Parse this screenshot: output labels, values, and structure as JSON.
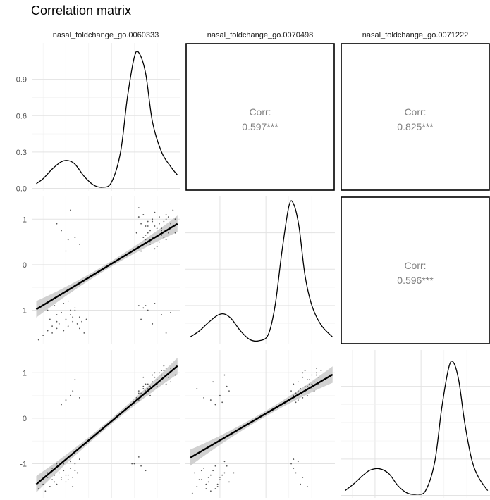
{
  "title": "Correlation matrix",
  "variables": [
    "nasal_foldchange_go.0060333",
    "nasal_foldchange_go.0070498",
    "nasal_foldchange_go.0071222"
  ],
  "chart_data": {
    "type": "scatter",
    "title": "Correlation matrix",
    "layout": "3x3 pairs plot; lower triangle scatter with linear fit and CI band, diagonal density curves, upper triangle correlation coefficients",
    "grid": true,
    "background": "light gray gridlines on white",
    "axis_ticks": {
      "x": [
        -1,
        0,
        1
      ],
      "y_density_first": [
        0.0,
        0.3,
        0.6,
        0.9
      ],
      "y_scatter": [
        -1,
        0,
        1
      ]
    },
    "xlim": [
      -1.75,
      1.5
    ],
    "ylim": [
      -1.75,
      1.5
    ],
    "density_ylim": [
      -0.02,
      1.2
    ],
    "correlations": [
      {
        "row": 1,
        "col": 2,
        "label": "Corr:",
        "value": "0.597***"
      },
      {
        "row": 1,
        "col": 3,
        "label": "Corr:",
        "value": "0.825***"
      },
      {
        "row": 2,
        "col": 3,
        "label": "Corr:",
        "value": "0.596***"
      }
    ],
    "densities": [
      {
        "variable": "nasal_foldchange_go.0060333",
        "x": [
          -1.65,
          -1.5,
          -1.3,
          -1.1,
          -0.95,
          -0.8,
          -0.6,
          -0.4,
          -0.2,
          0.0,
          0.2,
          0.35,
          0.5,
          0.6,
          0.75,
          0.9,
          1.1,
          1.3,
          1.45
        ],
        "y": [
          0.04,
          0.08,
          0.16,
          0.22,
          0.23,
          0.2,
          0.1,
          0.03,
          0.01,
          0.05,
          0.3,
          0.75,
          1.08,
          1.12,
          0.95,
          0.55,
          0.3,
          0.18,
          0.11
        ]
      },
      {
        "variable": "nasal_foldchange_go.0070498",
        "x": [
          -1.65,
          -1.45,
          -1.25,
          -1.05,
          -0.9,
          -0.75,
          -0.55,
          -0.35,
          -0.15,
          0.05,
          0.2,
          0.35,
          0.5,
          0.6,
          0.72,
          0.85,
          1.0,
          1.2,
          1.45
        ],
        "y": [
          0.04,
          0.09,
          0.16,
          0.22,
          0.23,
          0.19,
          0.09,
          0.02,
          0.01,
          0.06,
          0.3,
          0.75,
          1.12,
          1.14,
          0.95,
          0.55,
          0.3,
          0.14,
          0.04
        ]
      },
      {
        "variable": "nasal_foldchange_go.0071222",
        "x": [
          -1.65,
          -1.45,
          -1.25,
          -1.1,
          -0.9,
          -0.7,
          -0.5,
          -0.3,
          -0.1,
          0.1,
          0.3,
          0.45,
          0.6,
          0.7,
          0.82,
          0.95,
          1.1,
          1.25,
          1.45
        ],
        "y": [
          0.04,
          0.1,
          0.17,
          0.21,
          0.22,
          0.18,
          0.08,
          0.02,
          0.01,
          0.04,
          0.28,
          0.72,
          1.05,
          1.1,
          0.95,
          0.6,
          0.3,
          0.15,
          0.04
        ]
      }
    ],
    "fits": [
      {
        "row": 2,
        "col": 1,
        "x": [
          -1.65,
          1.45
        ],
        "y": [
          -0.98,
          0.9
        ]
      },
      {
        "row": 3,
        "col": 1,
        "x": [
          -1.65,
          1.45
        ],
        "y": [
          -1.45,
          1.15
        ]
      },
      {
        "row": 3,
        "col": 2,
        "x": [
          -1.65,
          1.45
        ],
        "y": [
          -0.87,
          0.96
        ]
      }
    ],
    "scatter": [
      {
        "row": 2,
        "col": 1,
        "x_variable": "nasal_foldchange_go.0060333",
        "y_variable": "nasal_foldchange_go.0070498",
        "x": [
          -1.6,
          -1.5,
          -1.4,
          -1.3,
          -1.2,
          -1.15,
          -1.05,
          -1.0,
          -0.95,
          -0.9,
          -0.85,
          -0.8,
          -0.75,
          -0.7,
          -1.25,
          -1.1,
          -0.6,
          -1.35,
          -0.95,
          -0.8,
          -1.2,
          -1.3,
          -0.9,
          -1.05,
          -0.85,
          -0.65,
          -1.4,
          -0.7,
          -0.55,
          -1.2,
          0.55,
          0.65,
          0.7,
          0.8,
          0.85,
          0.9,
          0.95,
          1.0,
          1.05,
          1.1,
          1.15,
          1.2,
          1.25,
          1.3,
          1.35,
          1.4,
          0.75,
          0.85,
          0.95,
          1.05,
          1.15,
          0.6,
          0.7,
          0.8,
          0.9,
          1.0,
          1.1,
          1.2,
          1.3,
          0.65,
          0.75,
          0.95,
          1.05,
          1.25,
          1.4,
          0.7,
          0.8,
          0.9,
          1.0,
          1.1,
          0.6,
          0.85,
          1.2,
          0.75,
          -1.0,
          -0.8,
          -1.2,
          -0.9,
          -1.1,
          -0.7,
          -0.95,
          0.6,
          0.7,
          0.8,
          0.95,
          1.1,
          1.3,
          0.65,
          0.9,
          1.2,
          0.75
        ],
        "y": [
          -1.65,
          -1.55,
          -1.45,
          -1.5,
          -1.4,
          -1.3,
          -1.45,
          -1.2,
          -1.35,
          -1.1,
          -1.25,
          -1.0,
          -1.3,
          -1.15,
          -0.9,
          -1.05,
          -1.5,
          -1.2,
          -0.8,
          -0.95,
          -1.1,
          -1.35,
          -1.0,
          -0.85,
          -1.15,
          -1.25,
          -1.0,
          -1.4,
          -1.2,
          -1.25,
          0.7,
          0.9,
          0.6,
          0.95,
          0.75,
          1.0,
          0.85,
          0.65,
          1.05,
          0.8,
          0.95,
          1.1,
          0.7,
          0.9,
          1.2,
          1.0,
          0.55,
          0.45,
          0.35,
          0.5,
          0.6,
          1.25,
          1.1,
          0.85,
          0.6,
          0.4,
          0.75,
          0.55,
          0.8,
          0.3,
          0.65,
          1.15,
          0.9,
          1.05,
          0.7,
          0.45,
          0.7,
          0.95,
          0.8,
          0.65,
          1.05,
          0.5,
          1.0,
          0.85,
          0.3,
          0.6,
          0.9,
          1.2,
          0.75,
          0.45,
          0.55,
          -0.9,
          -0.95,
          -1.0,
          -0.85,
          -1.1,
          -1.05,
          -1.2,
          -1.3,
          -1.5,
          -0.9
        ]
      },
      {
        "row": 3,
        "col": 1,
        "x_variable": "nasal_foldchange_go.0060333",
        "y_variable": "nasal_foldchange_go.0071222",
        "x": [
          -1.6,
          -1.5,
          -1.45,
          -1.4,
          -1.35,
          -1.3,
          -1.25,
          -1.2,
          -1.15,
          -1.1,
          -1.05,
          -1.0,
          -0.95,
          -0.9,
          -0.85,
          -0.8,
          -0.75,
          -1.3,
          -1.2,
          -1.1,
          -1.0,
          -0.9,
          -0.8,
          -1.4,
          -1.15,
          -0.95,
          -0.85,
          -1.25,
          -1.05,
          -0.7,
          -1.0,
          -0.9,
          -1.1,
          -0.8,
          -0.85,
          -0.7,
          0.55,
          0.6,
          0.65,
          0.7,
          0.75,
          0.8,
          0.85,
          0.9,
          0.95,
          1.0,
          1.05,
          1.1,
          1.15,
          1.2,
          1.25,
          1.3,
          1.35,
          1.4,
          0.6,
          0.7,
          0.8,
          0.9,
          1.0,
          1.1,
          1.2,
          1.3,
          0.65,
          0.75,
          0.85,
          0.95,
          1.05,
          1.15,
          1.25,
          0.7,
          0.9,
          1.1,
          1.3,
          0.8,
          1.0,
          1.2,
          0.6,
          0.85,
          0.5,
          0.45,
          0.6,
          0.65,
          0.75
        ],
        "y": [
          -1.55,
          -1.45,
          -1.6,
          -1.3,
          -1.5,
          -1.35,
          -1.25,
          -1.45,
          -1.2,
          -1.3,
          -1.15,
          -1.4,
          -1.25,
          -1.1,
          -1.3,
          -1.0,
          -1.2,
          -1.1,
          -1.0,
          -1.35,
          -1.25,
          -0.95,
          -1.15,
          -1.2,
          -1.05,
          -1.35,
          -1.5,
          -1.4,
          -1.0,
          -0.9,
          0.4,
          0.5,
          0.3,
          0.85,
          0.6,
          0.45,
          0.45,
          0.55,
          0.5,
          0.65,
          0.6,
          0.75,
          0.7,
          0.8,
          0.9,
          0.85,
          1.0,
          0.95,
          1.05,
          1.1,
          0.9,
          1.0,
          1.05,
          0.95,
          0.6,
          0.7,
          0.65,
          0.8,
          0.75,
          0.85,
          0.9,
          1.1,
          0.55,
          0.75,
          0.7,
          1.0,
          0.8,
          1.15,
          1.0,
          0.9,
          0.95,
          1.05,
          0.8,
          0.6,
          0.7,
          0.75,
          0.4,
          0.5,
          -1.0,
          -1.0,
          -0.85,
          -1.05,
          -1.15
        ]
      },
      {
        "row": 3,
        "col": 2,
        "x_variable": "nasal_foldchange_go.0070498",
        "y_variable": "nasal_foldchange_go.0071222",
        "x": [
          -1.6,
          -1.5,
          -1.4,
          -1.3,
          -1.2,
          -1.1,
          -1.0,
          -0.9,
          -0.8,
          -1.55,
          -1.45,
          -1.35,
          -1.25,
          -1.15,
          -1.05,
          -0.95,
          -0.85,
          -1.3,
          -1.2,
          -1.0,
          -1.4,
          -1.1,
          -0.9,
          -1.25,
          -1.05,
          -0.7,
          -1.5,
          -1.35,
          -1.15,
          -0.95,
          -0.8,
          -1.0,
          -0.9,
          -1.2,
          -1.1,
          -0.85,
          0.55,
          0.6,
          0.65,
          0.7,
          0.75,
          0.8,
          0.85,
          0.9,
          0.95,
          1.0,
          1.05,
          1.1,
          1.15,
          1.2,
          1.3,
          1.4,
          0.6,
          0.7,
          0.8,
          0.9,
          1.0,
          1.1,
          1.2,
          0.65,
          0.75,
          0.85,
          0.95,
          1.05,
          1.15,
          0.7,
          0.9,
          1.1,
          0.8,
          1.0,
          0.6,
          0.55,
          0.65,
          0.7,
          0.8,
          0.75,
          0.6,
          0.9
        ],
        "y": [
          -1.65,
          -1.5,
          -1.35,
          -1.45,
          -1.25,
          -1.55,
          -1.3,
          -1.2,
          -1.4,
          -1.2,
          -1.35,
          -1.1,
          -1.3,
          -1.15,
          -1.45,
          -1.25,
          -1.05,
          -1.55,
          -1.6,
          -1.35,
          -1.15,
          -1.05,
          -0.95,
          -1.4,
          -1.5,
          -1.2,
          0.65,
          0.45,
          0.8,
          0.35,
          0.6,
          0.5,
          0.95,
          0.4,
          0.3,
          0.7,
          0.6,
          0.75,
          0.55,
          0.8,
          0.65,
          0.9,
          0.7,
          0.85,
          0.75,
          0.95,
          0.8,
          1.0,
          0.9,
          1.05,
          0.85,
          0.95,
          0.5,
          0.6,
          0.45,
          0.7,
          0.65,
          1.1,
          0.8,
          0.35,
          0.55,
          1.05,
          0.85,
          0.6,
          0.75,
          0.4,
          0.5,
          0.95,
          1.0,
          0.75,
          -0.9,
          -1.0,
          -1.2,
          -0.95,
          -1.3,
          -1.45,
          -1.1,
          -1.5
        ]
      }
    ]
  }
}
